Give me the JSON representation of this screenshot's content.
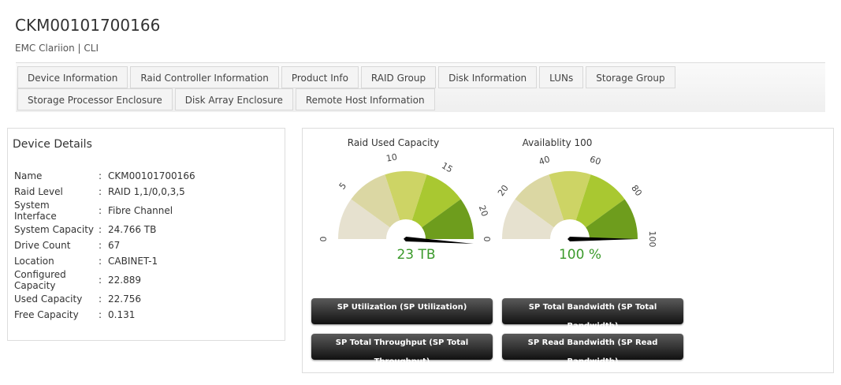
{
  "header": {
    "title": "CKM00101700166",
    "subtitle": "EMC Clariion | CLI"
  },
  "tabs": [
    "Device Information",
    "Raid Controller Information",
    "Product Info",
    "RAID Group",
    "Disk Information",
    "LUNs",
    "Storage Group",
    "Storage Processor Enclosure",
    "Disk Array Enclosure",
    "Remote Host Information"
  ],
  "device_details": {
    "title": "Device Details",
    "separator": ":",
    "rows": [
      [
        "Name",
        "CKM00101700166"
      ],
      [
        "Raid Level",
        "RAID 1,1/0,0,3,5"
      ],
      [
        "System Interface",
        "Fibre Channel"
      ],
      [
        "System Capacity",
        "24.766 TB"
      ],
      [
        "Drive Count",
        "67"
      ],
      [
        "Location",
        "CABINET-1"
      ],
      [
        "Configured Capacity",
        "22.889"
      ],
      [
        "Used Capacity",
        "22.756"
      ],
      [
        "Free Capacity",
        "0.131"
      ]
    ]
  },
  "gauges": [
    {
      "type": "gauge",
      "title": "Raid Used Capacity",
      "value": 23,
      "value_label": "23 TB",
      "range": [
        0,
        22.5
      ],
      "ticks": [
        0,
        5,
        10,
        15,
        20
      ]
    },
    {
      "type": "gauge",
      "title": "Availablity 100",
      "value": 100,
      "value_label": "100 %",
      "range": [
        0,
        100
      ],
      "ticks": [
        0,
        20,
        40,
        60,
        80,
        100
      ]
    }
  ],
  "buttons": [
    "SP Utilization (SP Utilization)",
    "SP Total Bandwidth (SP Total Bandwidth)",
    "SP Total Throughput (SP Total Throughput)",
    "SP Read Bandwidth (SP Read Bandwidth)"
  ]
}
